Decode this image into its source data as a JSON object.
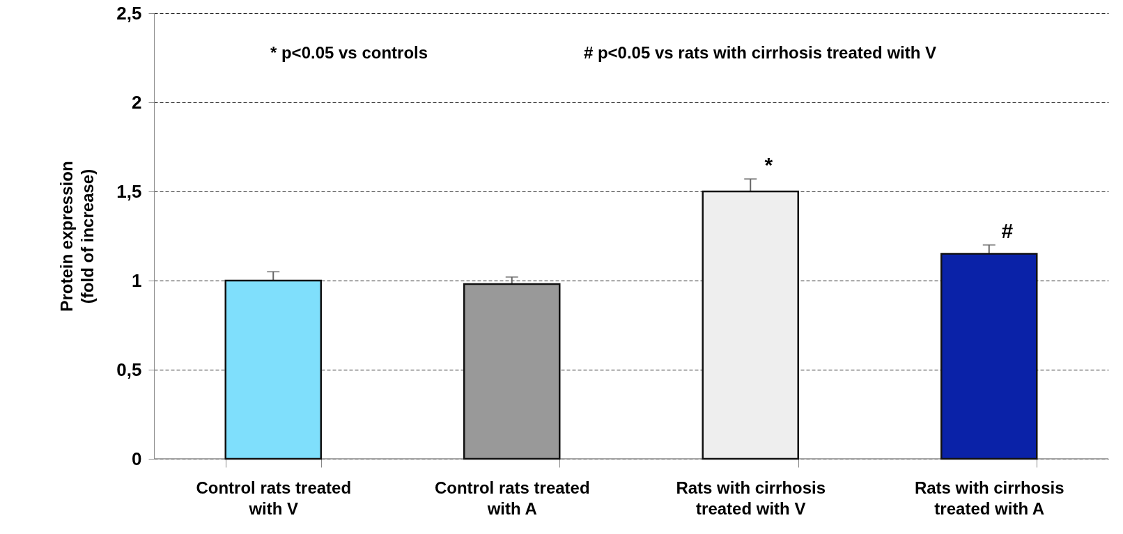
{
  "chart_data": {
    "type": "bar",
    "ylabel": "Protein expression (fold of increase)",
    "categories": [
      "Control rats treated with V",
      "Control rats treated with A",
      "Rats with cirrhosis treated with V",
      "Rats with cirrhosis treated with A"
    ],
    "values": [
      1.0,
      0.98,
      1.5,
      1.15
    ],
    "errors": [
      0.05,
      0.04,
      0.07,
      0.05
    ],
    "colors": [
      "#7fdffc",
      "#999999",
      "#eeeeee",
      "#0a22a8"
    ],
    "ylim": [
      0,
      2.5
    ],
    "yticks": [
      0,
      {
        "value": 0.5,
        "label": "0,5"
      },
      1,
      {
        "value": 1.5,
        "label": "1,5"
      },
      2,
      {
        "value": 2.5,
        "label": "2,5"
      }
    ],
    "grid": "y",
    "annotations": [
      "* p<0.05 vs controls",
      "# p<0.05 vs rats with cirrhosis treated with V",
      {
        "text": "*",
        "x": "Rats with cirrhosis treated with V",
        "y": 1.57
      },
      {
        "text": "#",
        "x": "Rats with cirrhosis treated with A",
        "y": 1.2
      }
    ]
  }
}
